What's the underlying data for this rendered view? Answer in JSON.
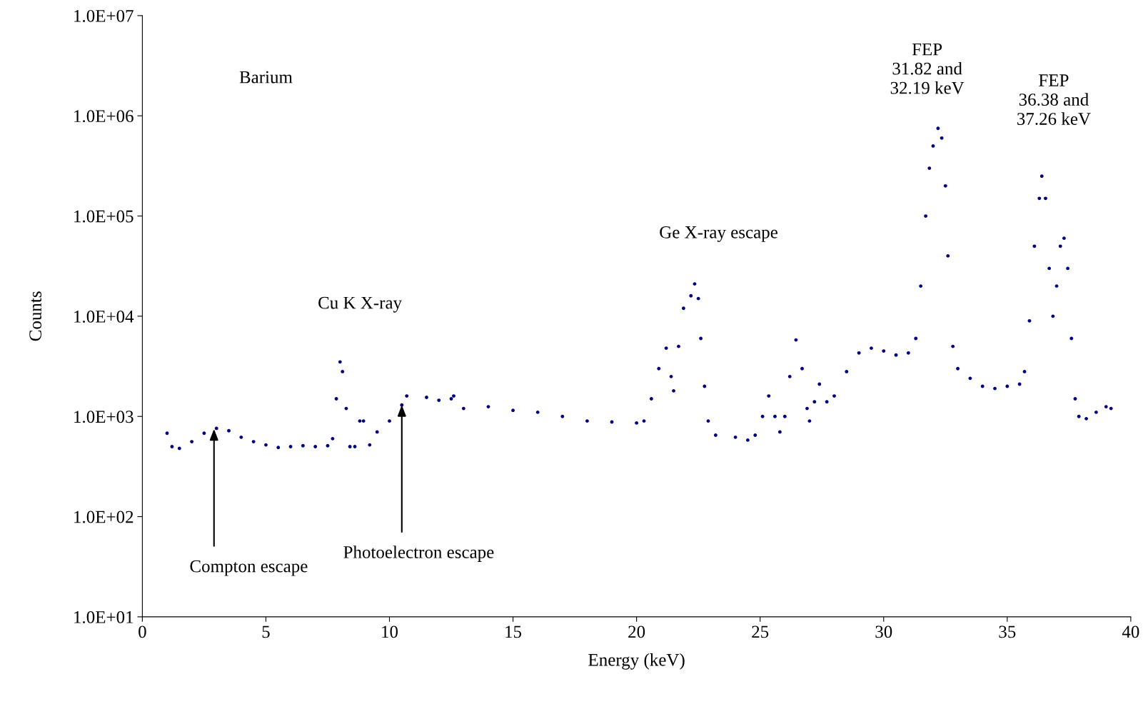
{
  "chart_data": {
    "type": "scatter",
    "xlabel": "Energy (keV)",
    "ylabel": "Counts",
    "log": "y",
    "grid": false,
    "legend": false,
    "marker": "circle",
    "xlim": [
      0,
      40
    ],
    "xticks": [
      0,
      5,
      10,
      15,
      20,
      25,
      30,
      35,
      40
    ],
    "ylim": [
      10,
      10000000
    ],
    "yticks": [
      {
        "value": 10,
        "label": "1.0E+01"
      },
      {
        "value": 100,
        "label": "1.0E+02"
      },
      {
        "value": 1000,
        "label": "1.0E+03"
      },
      {
        "value": 10000,
        "label": "1.0E+04"
      },
      {
        "value": 100000,
        "label": "1.0E+05"
      },
      {
        "value": 1000000,
        "label": "1.0E+06"
      },
      {
        "value": 10000000,
        "label": "1.0E+07"
      }
    ],
    "annotations": [
      "Barium",
      {
        "text": "Cu K X-ray",
        "x": 8.0,
        "y": 3500
      },
      "Ge X-ray escape",
      {
        "text": "FEP\n31.82 and\n32.19 keV",
        "x": 32.2,
        "y": 750000
      },
      {
        "text": "FEP\n36.38 and\n37.26 keV",
        "x": 36.4,
        "y": 250000
      },
      {
        "text": "Compton escape",
        "x": 2.9,
        "y": 750
      },
      {
        "text": "Photoelectron escape",
        "x": 10.5,
        "y": 1300
      }
    ],
    "series": [
      {
        "color": "#000080",
        "x": [
          1.0,
          1.2,
          1.5,
          2.0,
          2.5,
          3.0,
          3.5,
          4.0,
          4.5,
          5.0,
          5.5,
          6.0,
          6.5,
          7.0,
          7.5,
          7.7,
          7.85,
          8.0,
          8.1,
          8.25,
          8.4,
          8.6,
          8.8,
          8.95,
          9.2,
          9.5,
          10.0,
          10.5,
          10.7,
          11.5,
          12.0,
          12.5,
          12.6,
          13.0,
          14.0,
          15.0,
          16.0,
          17.0,
          18.0,
          19.0,
          20.0,
          20.3,
          20.6,
          20.9,
          21.2,
          21.4,
          21.5,
          21.7,
          21.9,
          22.2,
          22.35,
          22.5,
          22.6,
          22.75,
          22.9,
          23.2,
          24.0,
          24.5,
          24.8,
          25.1,
          25.35,
          25.6,
          25.8,
          26.0,
          26.2,
          26.45,
          26.7,
          26.9,
          27.0,
          27.2,
          27.4,
          27.7,
          28.0,
          28.5,
          29.0,
          29.5,
          30.0,
          30.5,
          31.0,
          31.3,
          31.5,
          31.7,
          31.85,
          32.0,
          32.2,
          32.35,
          32.5,
          32.6,
          32.8,
          33.0,
          33.5,
          34.0,
          34.5,
          35.0,
          35.5,
          35.7,
          35.9,
          36.1,
          36.3,
          36.4,
          36.55,
          36.7,
          36.85,
          37.0,
          37.15,
          37.3,
          37.45,
          37.6,
          37.75,
          37.9,
          38.2,
          38.6,
          39.0,
          39.2
        ],
        "values": [
          680,
          500,
          480,
          560,
          680,
          760,
          720,
          620,
          560,
          520,
          490,
          500,
          510,
          500,
          510,
          600,
          1500,
          3500,
          2800,
          1200,
          500,
          500,
          900,
          900,
          520,
          700,
          900,
          1300,
          1600,
          1550,
          1450,
          1500,
          1600,
          1200,
          1250,
          1150,
          1100,
          1000,
          900,
          880,
          860,
          900,
          1500,
          3000,
          4800,
          2500,
          1800,
          5000,
          12000,
          16000,
          21000,
          15000,
          6000,
          2000,
          900,
          650,
          620,
          580,
          650,
          1000,
          1600,
          1000,
          700,
          1000,
          2500,
          5800,
          3000,
          1200,
          900,
          1400,
          2100,
          1400,
          1600,
          2800,
          4300,
          4800,
          4500,
          4100,
          4300,
          6000,
          20000,
          100000,
          300000,
          500000,
          750000,
          600000,
          200000,
          40000,
          5000,
          3000,
          2400,
          2000,
          1900,
          2000,
          2100,
          2800,
          9000,
          50000,
          150000,
          250000,
          150000,
          30000,
          10000,
          20000,
          50000,
          60000,
          30000,
          6000,
          1500,
          1000,
          950,
          1100,
          1250,
          1200
        ]
      }
    ]
  }
}
